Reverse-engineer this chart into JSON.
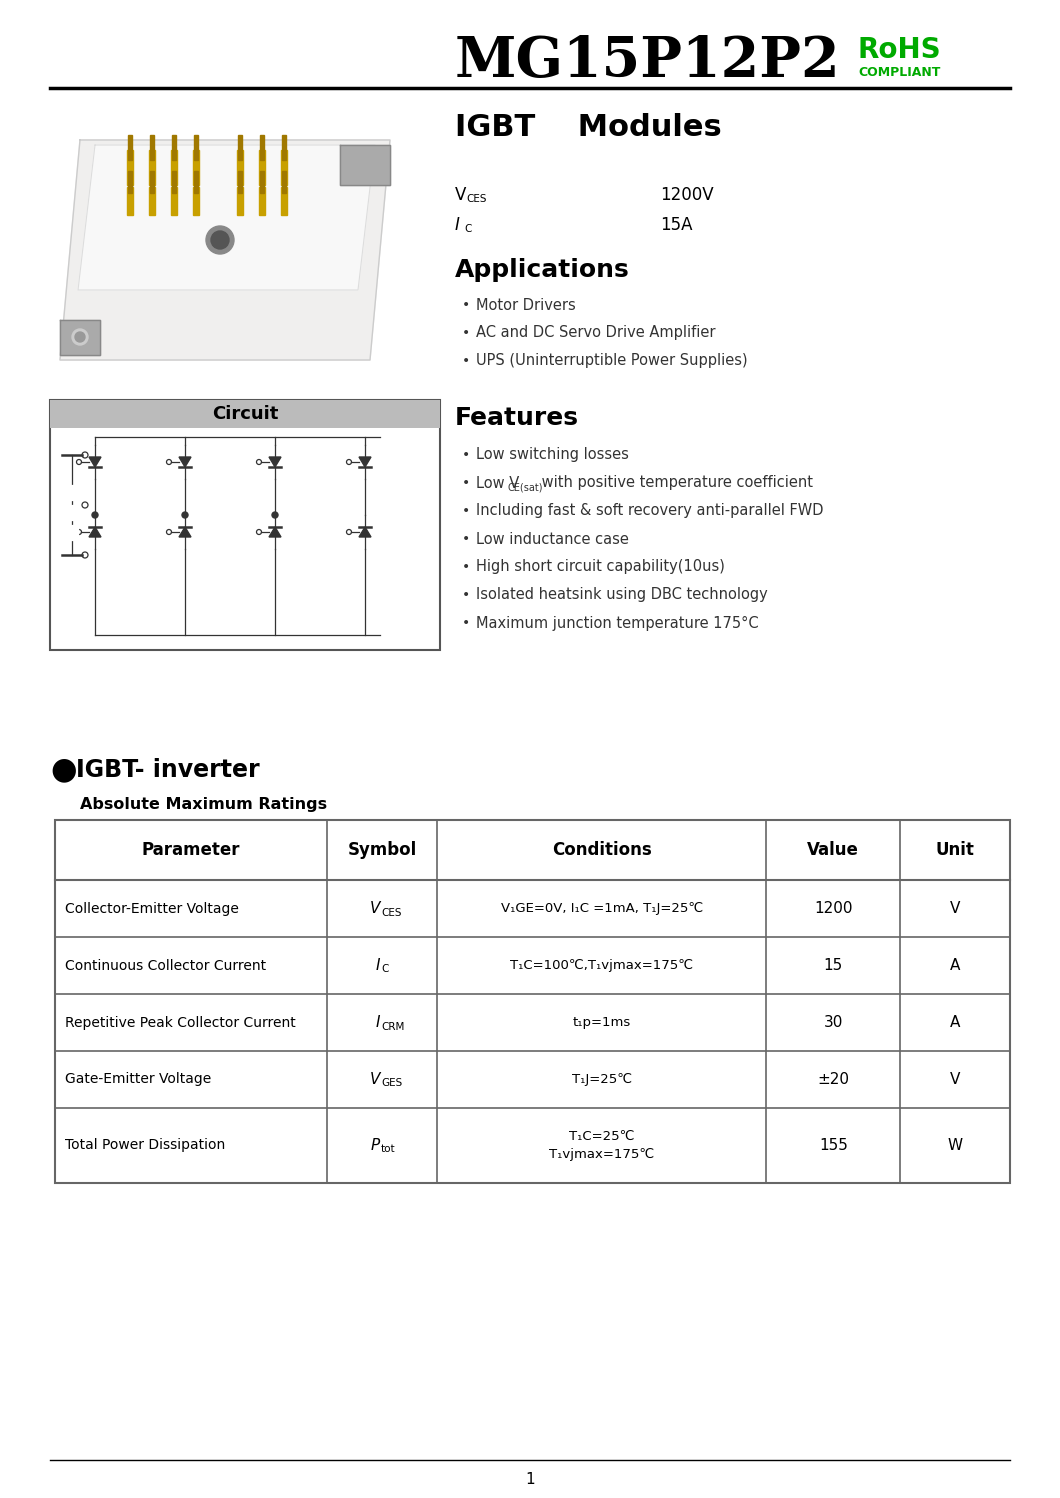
{
  "part_number": "MG15P12P2",
  "rohs_text": "RoHS",
  "rohs_sub": "COMPLIANT",
  "rohs_color": "#00aa00",
  "title": "IGBT    Modules",
  "vces_label_main": "V",
  "vces_label_sub": "CES",
  "vces_value": "1200V",
  "ic_label_main": "I",
  "ic_label_sub": "C",
  "ic_value": "15A",
  "applications_title": "Applications",
  "applications": [
    "Motor Drivers",
    "AC and DC Servo Drive Amplifier",
    "UPS (Uninterruptible Power Supplies)"
  ],
  "features_title": "Features",
  "circuit_title": "Circuit",
  "section_bullet": "●",
  "section_title": "IGBT- inverter",
  "abs_max_title": "Absolute Maximum Ratings",
  "table_headers": [
    "Parameter",
    "Symbol",
    "Conditions",
    "Value",
    "Unit"
  ],
  "row_params": [
    "Collector-Emitter Voltage",
    "Continuous Collector Current",
    "Repetitive Peak Collector Current",
    "Gate-Emitter Voltage",
    "Total Power Dissipation"
  ],
  "row_sym_mains": [
    "V",
    "I",
    "I",
    "V",
    "P"
  ],
  "row_sym_subs": [
    "CES",
    "C",
    "CRM",
    "GES",
    "tot"
  ],
  "row_conds_line1": [
    "V₁GE=0V, I₁C =1mA, T₁J=25℃",
    "T₁C=100℃,T₁vjmax=175℃",
    "t₁p=1ms",
    "T₁J=25℃",
    "T₁C=25℃"
  ],
  "row_conds_line2": [
    "",
    "",
    "",
    "",
    "T₁vjmax=175℃"
  ],
  "row_values": [
    "1200",
    "15",
    "30",
    "±20",
    "155"
  ],
  "row_units": [
    "V",
    "A",
    "A",
    "V",
    "W"
  ],
  "page_number": "1",
  "bg_color": "#ffffff",
  "text_color": "#000000",
  "table_border_color": "#666666"
}
